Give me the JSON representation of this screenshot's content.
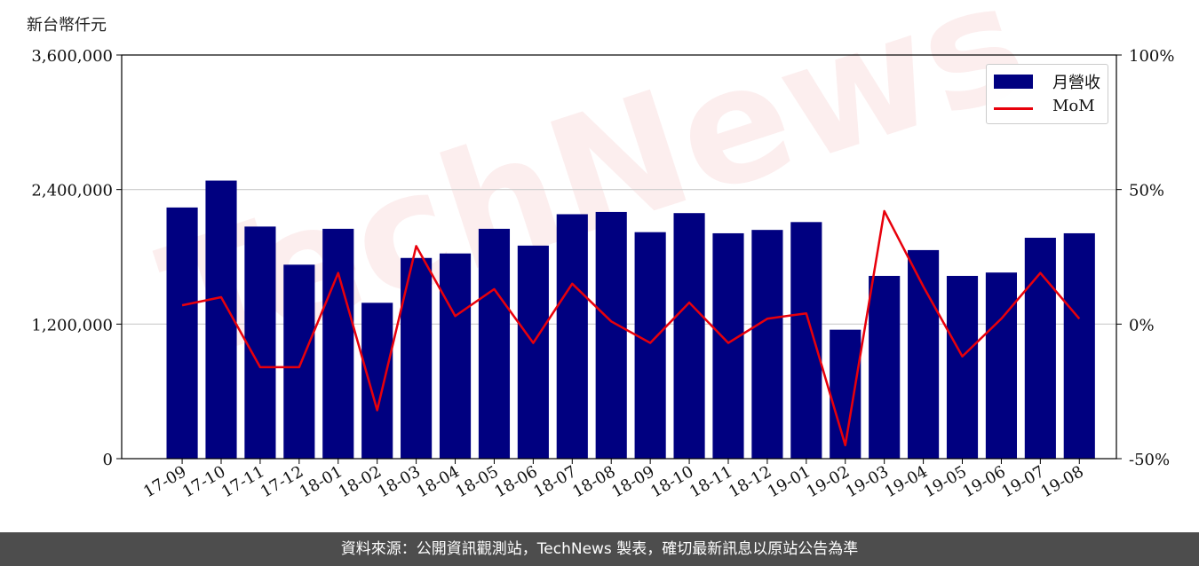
{
  "unit_label": "新台幣仟元",
  "watermark": "TechNews",
  "footer": "資料來源：公開資訊觀測站，TechNews 製表，確切最新訊息以原站公告為準",
  "colors": {
    "bar": "#000080",
    "line": "#e8000b"
  },
  "chart_data": {
    "type": "bar",
    "categories": [
      "17-09",
      "17-10",
      "17-11",
      "17-12",
      "18-01",
      "18-02",
      "18-03",
      "18-04",
      "18-05",
      "18-06",
      "18-07",
      "18-08",
      "18-09",
      "18-10",
      "18-11",
      "18-12",
      "19-01",
      "19-02",
      "19-03",
      "19-04",
      "19-05",
      "19-06",
      "19-07",
      "19-08"
    ],
    "series": [
      {
        "name": "月營收",
        "axis": "left",
        "type": "bar",
        "values": [
          2240000,
          2480000,
          2070000,
          1730000,
          2050000,
          1390000,
          1790000,
          1830000,
          2050000,
          1900000,
          2180000,
          2200000,
          2020000,
          2190000,
          2010000,
          2040000,
          2110000,
          1150000,
          1630000,
          1860000,
          1630000,
          1660000,
          1970000,
          2010000
        ]
      },
      {
        "name": "MoM",
        "axis": "right",
        "type": "line",
        "values": [
          7,
          10,
          -16,
          -16,
          19,
          -32,
          29,
          3,
          13,
          -7,
          15,
          1,
          -7,
          8,
          -7,
          2,
          4,
          -45,
          42,
          14,
          -12,
          2,
          19,
          2
        ]
      }
    ],
    "y_left": {
      "ylim": [
        0,
        3600000
      ],
      "ticks": [
        0,
        1200000,
        2400000,
        3600000
      ],
      "tick_labels": [
        "0",
        "1,200,000",
        "2,400,000",
        "3,600,000"
      ]
    },
    "y_right": {
      "ylim": [
        -50,
        100
      ],
      "ticks": [
        -50,
        0,
        50,
        100
      ],
      "tick_labels": [
        "-50%",
        "0%",
        "50%",
        "100%"
      ]
    },
    "grid": "horizontal",
    "legend_position": "top-right"
  }
}
